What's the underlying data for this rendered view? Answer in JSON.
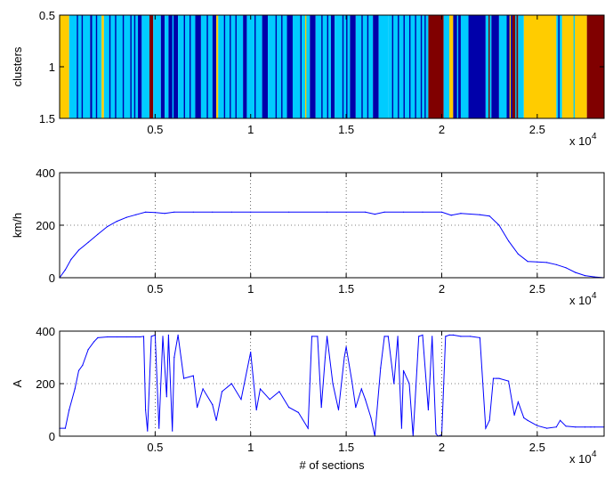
{
  "chart_data": [
    {
      "type": "heatmap",
      "ylabel": "clusters",
      "xlim": [
        0,
        28500
      ],
      "ylim": [
        0.5,
        1.5
      ],
      "x_ticks": [
        "0.5",
        "1",
        "1.5",
        "2",
        "2.5"
      ],
      "x_tick_values": [
        5000,
        10000,
        15000,
        20000,
        25000
      ],
      "y_ticks": [
        "0.5",
        "1",
        "1.5"
      ],
      "y_tick_values": [
        0.5,
        1,
        1.5
      ],
      "x_exponent_base": "x 10",
      "x_exponent_power": "4",
      "grid": false,
      "legend": "none",
      "colors": {
        "1": "#ffcc00",
        "2": "#00ccff",
        "3": "#0000aa",
        "4": "#800000"
      },
      "segments": [
        [
          0,
          500,
          1
        ],
        [
          500,
          1600,
          2
        ],
        [
          1600,
          1700,
          3
        ],
        [
          1700,
          2200,
          2
        ],
        [
          2200,
          2320,
          1
        ],
        [
          2320,
          4100,
          2
        ],
        [
          4100,
          4300,
          3
        ],
        [
          4300,
          4700,
          2
        ],
        [
          4700,
          4900,
          4
        ],
        [
          4900,
          5300,
          2
        ],
        [
          5300,
          5500,
          3
        ],
        [
          5500,
          5700,
          2
        ],
        [
          5700,
          6200,
          3
        ],
        [
          6200,
          7100,
          2
        ],
        [
          7100,
          7400,
          3
        ],
        [
          7400,
          8000,
          2
        ],
        [
          8000,
          8200,
          3
        ],
        [
          8200,
          8300,
          1
        ],
        [
          8300,
          9600,
          2
        ],
        [
          9600,
          9800,
          3
        ],
        [
          9800,
          10600,
          2
        ],
        [
          10600,
          10900,
          3
        ],
        [
          10900,
          11900,
          2
        ],
        [
          11900,
          12200,
          3
        ],
        [
          12200,
          13100,
          2
        ],
        [
          13100,
          13400,
          3
        ],
        [
          13400,
          14200,
          2
        ],
        [
          14200,
          14400,
          3
        ],
        [
          14400,
          15200,
          2
        ],
        [
          15200,
          15500,
          3
        ],
        [
          15500,
          16400,
          2
        ],
        [
          16400,
          16700,
          3
        ],
        [
          16700,
          17200,
          2
        ],
        [
          17200,
          19300,
          2
        ],
        [
          19300,
          20100,
          4
        ],
        [
          20100,
          20400,
          2
        ],
        [
          20400,
          20600,
          1
        ],
        [
          20600,
          21000,
          3
        ],
        [
          21000,
          21400,
          2
        ],
        [
          21400,
          22300,
          3
        ],
        [
          22300,
          22600,
          2
        ],
        [
          22600,
          23000,
          3
        ],
        [
          23000,
          23400,
          2
        ],
        [
          23400,
          23700,
          3
        ],
        [
          23700,
          24000,
          4
        ],
        [
          24000,
          24300,
          2
        ],
        [
          24300,
          26000,
          1
        ],
        [
          26000,
          26300,
          2
        ],
        [
          26300,
          27600,
          1
        ],
        [
          27600,
          28500,
          4
        ]
      ],
      "thin_lines": [
        [
          900,
          3
        ],
        [
          1150,
          3
        ],
        [
          1900,
          3
        ],
        [
          2600,
          3
        ],
        [
          2900,
          3
        ],
        [
          3300,
          3
        ],
        [
          3700,
          3
        ],
        [
          3900,
          3
        ],
        [
          5900,
          2
        ],
        [
          6500,
          3
        ],
        [
          6800,
          3
        ],
        [
          7700,
          3
        ],
        [
          8600,
          3
        ],
        [
          8900,
          3
        ],
        [
          9200,
          3
        ],
        [
          10200,
          3
        ],
        [
          11300,
          3
        ],
        [
          11600,
          3
        ],
        [
          12600,
          3
        ],
        [
          12850,
          1
        ],
        [
          13700,
          3
        ],
        [
          14000,
          3
        ],
        [
          14800,
          3
        ],
        [
          15000,
          3
        ],
        [
          15800,
          3
        ],
        [
          16100,
          3
        ],
        [
          17400,
          3
        ],
        [
          17700,
          3
        ],
        [
          18000,
          3
        ],
        [
          18300,
          3
        ],
        [
          18600,
          3
        ],
        [
          18900,
          3
        ],
        [
          19100,
          3
        ],
        [
          20800,
          2
        ],
        [
          22450,
          4
        ],
        [
          23550,
          1
        ],
        [
          23850,
          2
        ],
        [
          26100,
          3
        ],
        [
          26900,
          2
        ]
      ]
    },
    {
      "type": "line",
      "ylabel": "km/h",
      "xlim": [
        0,
        28500
      ],
      "ylim": [
        0,
        400
      ],
      "x_ticks": [
        "0.5",
        "1",
        "1.5",
        "2",
        "2.5"
      ],
      "x_tick_values": [
        5000,
        10000,
        15000,
        20000,
        25000
      ],
      "y_ticks": [
        "0",
        "200",
        "400"
      ],
      "y_tick_values": [
        0,
        200,
        400
      ],
      "x_exponent_base": "x 10",
      "x_exponent_power": "4",
      "grid": true,
      "legend": "none",
      "series": [
        {
          "color": "#0000ff",
          "x": [
            0,
            300,
            600,
            1000,
            1500,
            2000,
            2500,
            3000,
            3500,
            4000,
            4500,
            5000,
            5500,
            6000,
            7000,
            8000,
            9000,
            10000,
            12000,
            14000,
            16000,
            16500,
            17000,
            18000,
            19000,
            20000,
            20500,
            21000,
            22000,
            22500,
            23000,
            23500,
            24000,
            24500,
            25000,
            25500,
            26000,
            26500,
            27000,
            27500,
            28000,
            28500
          ],
          "y": [
            0,
            30,
            70,
            105,
            135,
            165,
            195,
            215,
            230,
            240,
            250,
            248,
            245,
            250,
            250,
            250,
            250,
            250,
            250,
            250,
            250,
            242,
            250,
            250,
            250,
            250,
            238,
            245,
            240,
            235,
            200,
            140,
            90,
            62,
            60,
            58,
            50,
            38,
            20,
            8,
            3,
            0
          ]
        }
      ]
    },
    {
      "type": "line",
      "ylabel": "A",
      "xlabel": "# of sections",
      "xlim": [
        0,
        28500
      ],
      "ylim": [
        0,
        400
      ],
      "x_ticks": [
        "0.5",
        "1",
        "1.5",
        "2",
        "2.5"
      ],
      "x_tick_values": [
        5000,
        10000,
        15000,
        20000,
        25000
      ],
      "y_ticks": [
        "0",
        "200",
        "400"
      ],
      "y_tick_values": [
        0,
        200,
        400
      ],
      "x_exponent_base": "x 10",
      "x_exponent_power": "4",
      "grid": true,
      "legend": "none",
      "series": [
        {
          "color": "#0000ff",
          "x": [
            0,
            300,
            500,
            800,
            1000,
            1200,
            1500,
            1800,
            2000,
            2500,
            3000,
            3500,
            4000,
            4200,
            4400,
            4500,
            4600,
            4800,
            5000,
            5200,
            5400,
            5600,
            5700,
            5900,
            6000,
            6200,
            6500,
            7000,
            7200,
            7500,
            8000,
            8200,
            8500,
            9000,
            9500,
            10000,
            10300,
            10500,
            11000,
            11500,
            12000,
            12500,
            13000,
            13200,
            13500,
            13700,
            13900,
            14000,
            14300,
            14600,
            14900,
            15000,
            15300,
            15500,
            15800,
            16000,
            16300,
            16500,
            16800,
            17000,
            17200,
            17500,
            17700,
            17900,
            18000,
            18300,
            18500,
            18800,
            19000,
            19300,
            19500,
            19700,
            19800,
            20000,
            20200,
            20400,
            20600,
            21000,
            21500,
            22000,
            22300,
            22500,
            22700,
            22900,
            23000,
            23500,
            23800,
            24000,
            24300,
            24500,
            25000,
            25500,
            26000,
            26200,
            26500,
            27000,
            27500,
            27800,
            28000,
            28500
          ],
          "y": [
            30,
            30,
            100,
            180,
            250,
            270,
            330,
            360,
            375,
            378,
            378,
            378,
            378,
            378,
            380,
            100,
            20,
            380,
            385,
            30,
            380,
            150,
            385,
            20,
            300,
            385,
            220,
            230,
            110,
            180,
            120,
            60,
            170,
            200,
            140,
            320,
            100,
            180,
            140,
            170,
            110,
            90,
            30,
            380,
            380,
            110,
            300,
            380,
            200,
            100,
            300,
            340,
            210,
            110,
            180,
            140,
            70,
            0,
            260,
            380,
            380,
            200,
            380,
            30,
            250,
            200,
            0,
            380,
            385,
            100,
            380,
            10,
            0,
            5,
            380,
            385,
            385,
            380,
            380,
            375,
            30,
            60,
            220,
            220,
            220,
            210,
            80,
            130,
            70,
            60,
            40,
            30,
            35,
            60,
            38,
            35,
            35,
            35,
            35,
            35
          ]
        }
      ]
    }
  ]
}
